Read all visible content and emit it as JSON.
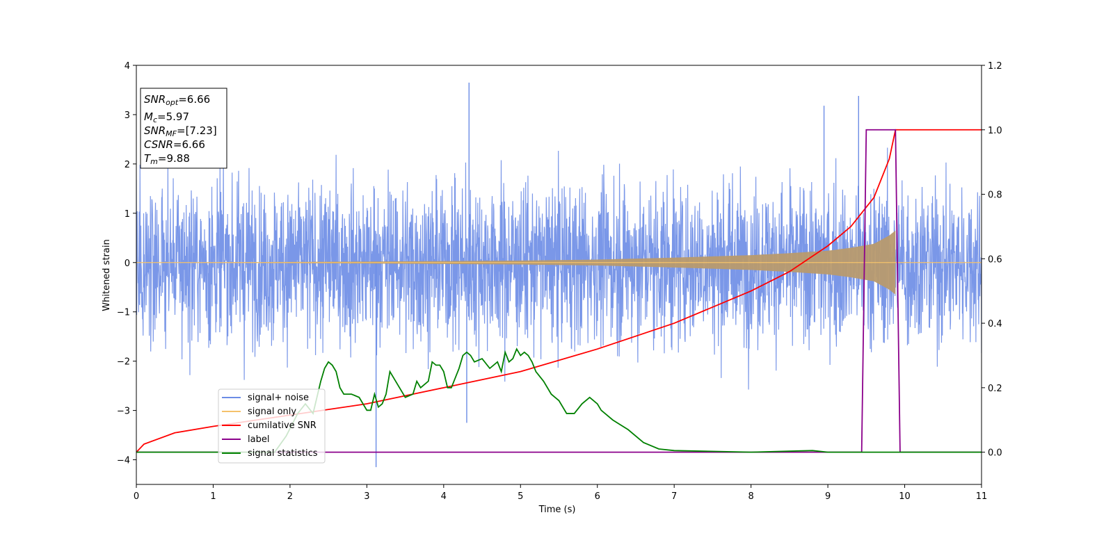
{
  "chart_data": {
    "type": "line",
    "title": "",
    "xlabel": "Time (s)",
    "ylabel": "Whitened strain",
    "xlim": [
      0,
      11
    ],
    "ylim": [
      -4.5,
      4
    ],
    "y2lim": [
      -0.1,
      1.2
    ],
    "x_ticks": [
      0,
      1,
      2,
      3,
      4,
      5,
      6,
      7,
      8,
      9,
      10,
      11
    ],
    "y_ticks": [
      -4,
      -3,
      -2,
      -1,
      0,
      1,
      2,
      3,
      4
    ],
    "y2_ticks": [
      0.0,
      0.2,
      0.4,
      0.6,
      0.8,
      1.0,
      1.2
    ],
    "x_tick_labels": [
      "0",
      "1",
      "2",
      "3",
      "4",
      "5",
      "6",
      "7",
      "8",
      "9",
      "10",
      "11"
    ],
    "y_tick_labels": [
      "−4",
      "−3",
      "−2",
      "−1",
      "0",
      "1",
      "2",
      "3",
      "4"
    ],
    "y2_tick_labels": [
      "0.0",
      "0.2",
      "0.4",
      "0.6",
      "0.8",
      "1.0",
      "1.2"
    ],
    "grid": false,
    "legend_position": "lower-left",
    "colors": {
      "noise": "#6b8ce6",
      "signal": "#f5c26b",
      "csnr": "#ff0000",
      "label": "#8b008b",
      "stats": "#008000"
    },
    "annotation": {
      "snr_opt_symbol": "SNR",
      "snr_opt_sub": "opt",
      "snr_opt_value": "=6.66",
      "mc_symbol": "M",
      "mc_sub": "c",
      "mc_value": "=5.97",
      "snr_mf_symbol": "SNR",
      "snr_mf_sub": "MF",
      "snr_mf_value": "=[7.23]",
      "csnr_symbol": "CSNR",
      "csnr_value": "=6.66",
      "tm_symbol": "T",
      "tm_sub": "m",
      "tm_value": "=9.88"
    },
    "series": [
      {
        "name": "signal+ noise",
        "axis": "left",
        "kind": "noise",
        "x_range": [
          0,
          11
        ],
        "typical_amplitude": 1.3,
        "max": 3.65,
        "min": -4.15,
        "peaks": [
          [
            4.33,
            3.65
          ],
          [
            3.12,
            -4.15
          ],
          [
            9.4,
            3.38
          ],
          [
            8.95,
            3.18
          ],
          [
            4.3,
            -3.25
          ]
        ]
      },
      {
        "name": "signal only",
        "axis": "left",
        "kind": "chirp-envelope",
        "envelope": {
          "t": [
            0,
            3,
            5,
            6,
            7,
            8,
            8.5,
            9,
            9.3,
            9.6,
            9.8,
            9.88
          ],
          "amp": [
            0.0,
            0.02,
            0.04,
            0.06,
            0.1,
            0.15,
            0.19,
            0.24,
            0.3,
            0.38,
            0.55,
            0.65
          ]
        }
      },
      {
        "name": "cumilative SNR",
        "axis": "right",
        "x": [
          0,
          0.1,
          0.5,
          1,
          2,
          3,
          4,
          5,
          6,
          7,
          8,
          8.5,
          9,
          9.3,
          9.6,
          9.8,
          9.88,
          11
        ],
        "y": [
          0.0,
          0.025,
          0.06,
          0.08,
          0.115,
          0.15,
          0.2,
          0.25,
          0.32,
          0.4,
          0.5,
          0.56,
          0.64,
          0.7,
          0.79,
          0.91,
          1.0,
          1.0
        ]
      },
      {
        "name": "label",
        "axis": "right",
        "x": [
          0,
          9.44,
          9.5,
          9.88,
          9.94,
          11
        ],
        "y": [
          0,
          0,
          1,
          1,
          0,
          0
        ]
      },
      {
        "name": "signal statistics",
        "axis": "right",
        "x": [
          0,
          1.8,
          1.95,
          2.1,
          2.2,
          2.3,
          2.4,
          2.45,
          2.5,
          2.55,
          2.6,
          2.65,
          2.7,
          2.8,
          2.9,
          3.0,
          3.05,
          3.1,
          3.15,
          3.2,
          3.25,
          3.3,
          3.4,
          3.5,
          3.6,
          3.65,
          3.7,
          3.8,
          3.85,
          3.9,
          3.95,
          4.0,
          4.05,
          4.1,
          4.15,
          4.2,
          4.25,
          4.3,
          4.35,
          4.4,
          4.5,
          4.6,
          4.7,
          4.75,
          4.8,
          4.85,
          4.9,
          4.95,
          5.0,
          5.05,
          5.1,
          5.15,
          5.2,
          5.3,
          5.4,
          5.45,
          5.5,
          5.6,
          5.7,
          5.8,
          5.9,
          6.0,
          6.05,
          6.1,
          6.2,
          6.4,
          6.6,
          6.8,
          7.0,
          8.0,
          8.8,
          9.0,
          9.5,
          11
        ],
        "y": [
          0.0,
          0.0,
          0.05,
          0.12,
          0.15,
          0.12,
          0.22,
          0.26,
          0.28,
          0.27,
          0.25,
          0.2,
          0.18,
          0.18,
          0.17,
          0.13,
          0.13,
          0.18,
          0.14,
          0.15,
          0.18,
          0.25,
          0.21,
          0.17,
          0.18,
          0.22,
          0.2,
          0.22,
          0.28,
          0.27,
          0.27,
          0.25,
          0.2,
          0.2,
          0.23,
          0.26,
          0.3,
          0.31,
          0.3,
          0.28,
          0.29,
          0.26,
          0.28,
          0.25,
          0.31,
          0.28,
          0.29,
          0.32,
          0.3,
          0.31,
          0.3,
          0.28,
          0.25,
          0.22,
          0.18,
          0.17,
          0.16,
          0.12,
          0.12,
          0.15,
          0.17,
          0.15,
          0.13,
          0.12,
          0.1,
          0.07,
          0.03,
          0.01,
          0.005,
          0.0,
          0.005,
          0.0,
          0.0,
          0.0
        ]
      }
    ]
  }
}
